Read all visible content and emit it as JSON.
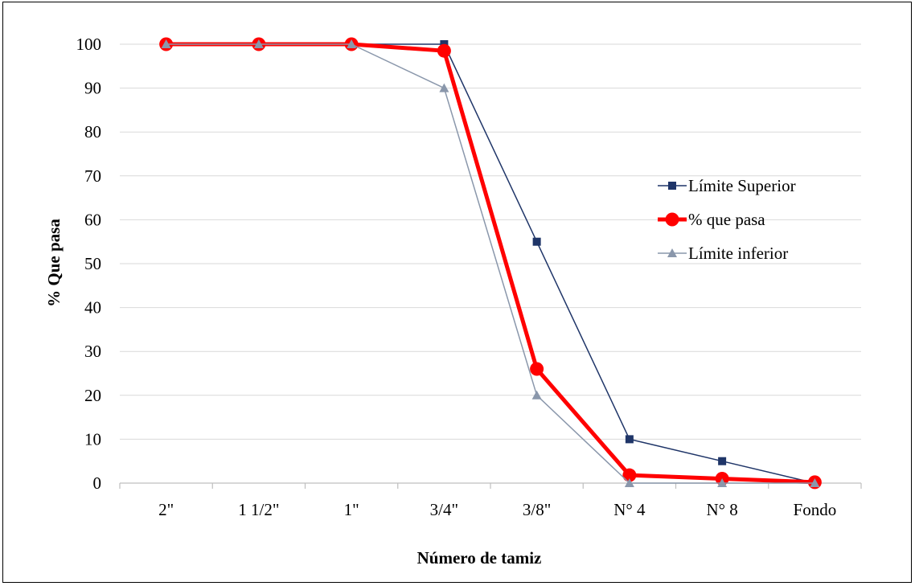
{
  "chart_data": {
    "type": "line",
    "title": "",
    "xlabel": "Número de tamiz",
    "ylabel": "% Que pasa",
    "categories": [
      "2\"",
      "1 1/2\"",
      "1\"",
      "3/4\"",
      "3/8\"",
      "N° 4",
      "N° 8",
      "Fondo"
    ],
    "ylim": [
      0,
      100
    ],
    "yticks": [
      0,
      10,
      20,
      30,
      40,
      50,
      60,
      70,
      80,
      90,
      100
    ],
    "grid": "horizontal",
    "legend_position": "right",
    "series": [
      {
        "name": "Límite Superior",
        "values": [
          100,
          100,
          100,
          100,
          55,
          10,
          5,
          0
        ],
        "color": "#1f3568",
        "marker": "square",
        "line_width": 1.5
      },
      {
        "name": "% que pasa",
        "values": [
          100,
          100,
          100,
          98.5,
          26,
          1.8,
          1,
          0.2
        ],
        "color": "#ff0000",
        "marker": "circle",
        "line_width": 5
      },
      {
        "name": "Límite inferior",
        "values": [
          100,
          100,
          100,
          90,
          20,
          0,
          0,
          0
        ],
        "color": "#8a97ab",
        "marker": "triangle",
        "line_width": 1.5
      }
    ]
  }
}
